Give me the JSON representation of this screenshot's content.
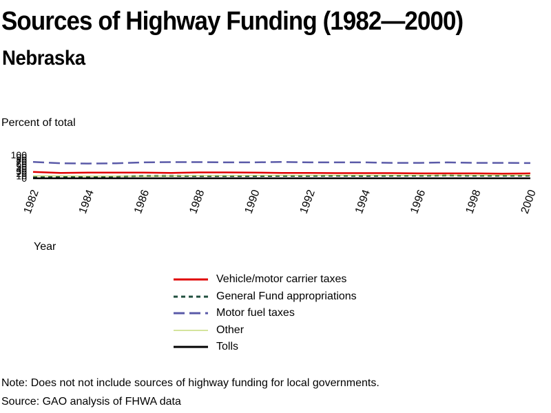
{
  "header": {
    "title": "Sources of Highway Funding (1982—2000)",
    "subtitle": "Nebraska"
  },
  "footer": {
    "note": "Note: Does not not include sources of highway funding for local governments.",
    "source": "Source: GAO analysis of FHWA data"
  },
  "chart_data": {
    "type": "line",
    "title": "Sources of Highway Funding (1982—2000)",
    "subtitle": "Nebraska",
    "xlabel": "Year",
    "ylabel": "Percent of total",
    "x": [
      1982,
      1983,
      1984,
      1985,
      1986,
      1987,
      1988,
      1989,
      1990,
      1991,
      1992,
      1993,
      1994,
      1995,
      1996,
      1997,
      1998,
      1999,
      2000
    ],
    "x_tick_labels": [
      "1982",
      "1984",
      "1986",
      "1988",
      "1990",
      "1992",
      "1994",
      "1996",
      "1998",
      "2000"
    ],
    "x_ticks": [
      1982,
      1984,
      1986,
      1988,
      1990,
      1992,
      1994,
      1996,
      1998,
      2000
    ],
    "y_tick_labels": [
      "0",
      "10",
      "20",
      "30",
      "40",
      "50",
      "60",
      "70",
      "80",
      "90",
      "100"
    ],
    "y_ticks": [
      0,
      10,
      20,
      30,
      40,
      50,
      60,
      70,
      80,
      90,
      100
    ],
    "ylim": [
      0,
      100
    ],
    "xlim": [
      1982,
      2000
    ],
    "grid": false,
    "legend_position": "bottom",
    "series": [
      {
        "name": "Vehicle/motor carrier taxes",
        "color": "#e00000",
        "dash": "solid",
        "values": [
          27,
          23,
          24,
          24,
          24,
          23,
          25,
          25,
          24,
          23,
          23,
          22,
          22,
          22,
          21,
          21,
          21,
          20,
          21
        ]
      },
      {
        "name": "General Fund appropriations",
        "color": "#1f4e3d",
        "dash": "dashed",
        "values": [
          4,
          5,
          6,
          7,
          10,
          10,
          9,
          9,
          9,
          10,
          10,
          11,
          10,
          11,
          11,
          12,
          11,
          11,
          11
        ]
      },
      {
        "name": "Motor fuel taxes",
        "color": "#5a5aa8",
        "dash": "longdash",
        "values": [
          70,
          64,
          63,
          64,
          68,
          69,
          69,
          68,
          68,
          70,
          68,
          68,
          68,
          66,
          66,
          68,
          66,
          66,
          65
        ]
      },
      {
        "name": "Other",
        "color": "#a8c838",
        "dash": "solid",
        "values": [
          10,
          10,
          9,
          9,
          9,
          10,
          11,
          11,
          12,
          12,
          12,
          13,
          13,
          13,
          13,
          13,
          13,
          13,
          13
        ]
      },
      {
        "name": "Tolls",
        "color": "#000000",
        "dash": "solid",
        "values": [
          0,
          0,
          0,
          0,
          0,
          0,
          0,
          0,
          0,
          0,
          0,
          0,
          0,
          0,
          0,
          0,
          0,
          0,
          0
        ]
      }
    ]
  }
}
